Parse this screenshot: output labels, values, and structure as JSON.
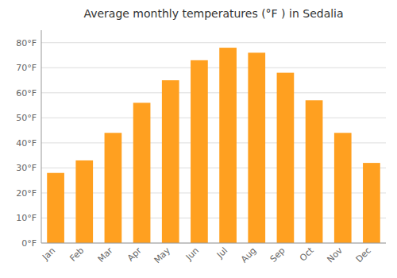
{
  "chart_data": {
    "type": "bar",
    "title": "Average monthly temperatures (°F ) in Sedalia",
    "categories": [
      "Jan",
      "Feb",
      "Mar",
      "Apr",
      "May",
      "Jun",
      "Jul",
      "Aug",
      "Sep",
      "Oct",
      "Nov",
      "Dec"
    ],
    "values": [
      28,
      33,
      44,
      56,
      65,
      73,
      78,
      76,
      68,
      57,
      44,
      32
    ],
    "color": "#FFA020",
    "ylim": [
      0,
      85
    ],
    "yticks": [
      {
        "value": 0,
        "label": "0°F"
      },
      {
        "value": 10,
        "label": "10°F"
      },
      {
        "value": 20,
        "label": "20°F"
      },
      {
        "value": 30,
        "label": "30°F"
      },
      {
        "value": 40,
        "label": "40°F"
      },
      {
        "value": 50,
        "label": "50°F"
      },
      {
        "value": 60,
        "label": "60°F"
      },
      {
        "value": 70,
        "label": "70°F"
      },
      {
        "value": 80,
        "label": "80°F"
      }
    ],
    "grid": true
  }
}
